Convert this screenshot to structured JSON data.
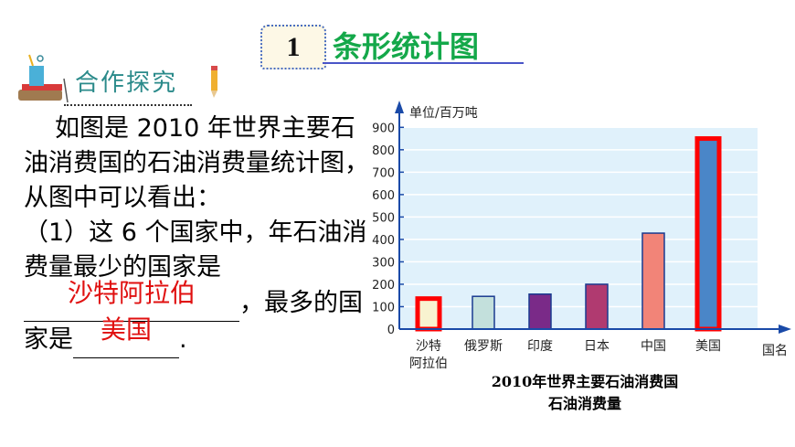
{
  "header": {
    "section_number": "1",
    "section_title": "条形统计图",
    "badge": "合作探究"
  },
  "question": {
    "line1": "如图是 2010 年世界主要石油消费国的石油消费量统计图，从图中可以看出：",
    "line2": "（1）这 6 个国家中，年石油消费量最少的国家是",
    "answer_least": "沙特阿拉伯",
    "line3": "，最多的国家是",
    "answer_most": "美国",
    "line4": "."
  },
  "chart_data": {
    "type": "bar",
    "title": "2010年世界主要石油消费国石油消费量",
    "title_lines": [
      "2010年世界主要石油消费国",
      "石油消费量"
    ],
    "ylabel": "单位/百万吨",
    "xlabel": "国名",
    "categories": [
      "沙特阿拉伯",
      "俄罗斯",
      "印度",
      "日本",
      "中国",
      "美国"
    ],
    "category_lines": [
      [
        "沙特",
        "阿拉伯"
      ],
      [
        "俄罗斯"
      ],
      [
        "印度"
      ],
      [
        "日本"
      ],
      [
        "中国"
      ],
      [
        "美国"
      ]
    ],
    "values": [
      136,
      146,
      156,
      200,
      428,
      850
    ],
    "colors": [
      "#f8f3d0",
      "#c3e0dc",
      "#7a2a88",
      "#b03a70",
      "#f28478",
      "#4a86c8"
    ],
    "highlighted": [
      "沙特阿拉伯",
      "美国"
    ],
    "highlight_color": "#ff0000",
    "ylim": [
      0,
      900
    ],
    "yticks": [
      0,
      100,
      200,
      300,
      400,
      500,
      600,
      700,
      800,
      900
    ],
    "grid": true,
    "plot_background": "#e0f1fb"
  }
}
